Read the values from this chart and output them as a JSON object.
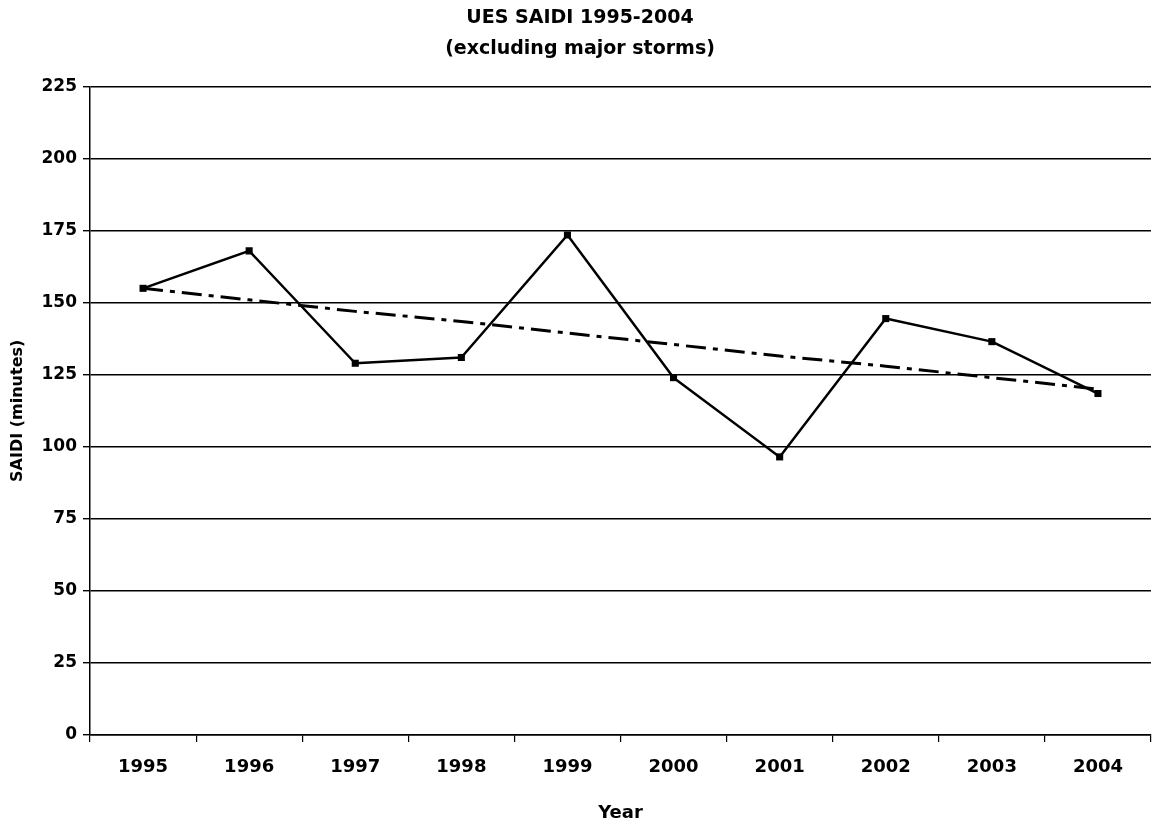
{
  "chart_data": {
    "type": "line",
    "title": "UES SAIDI 1995-2004",
    "subtitle": "(excluding major storms)",
    "xlabel": "Year",
    "ylabel": "SAIDI (minutes)",
    "categories": [
      "1995",
      "1996",
      "1997",
      "1998",
      "1999",
      "2000",
      "2001",
      "2002",
      "2003",
      "2004"
    ],
    "series": [
      {
        "color": "#000000",
        "marker": "square",
        "line_style": "solid",
        "values": [
          155,
          168,
          129,
          131,
          173.5,
          124,
          96.5,
          144.5,
          136.5,
          118.5
        ]
      },
      {
        "type": "line",
        "color": "#000000",
        "marker": "none",
        "line_style": "dashed",
        "values": [
          155,
          151,
          147,
          143.5,
          139.5,
          135.5,
          131.5,
          128,
          124,
          120
        ]
      }
    ],
    "ylim": [
      0,
      225
    ],
    "yticks": [
      0,
      25,
      50,
      75,
      100,
      125,
      150,
      175,
      200,
      225
    ],
    "grid": "y",
    "legend": false
  }
}
